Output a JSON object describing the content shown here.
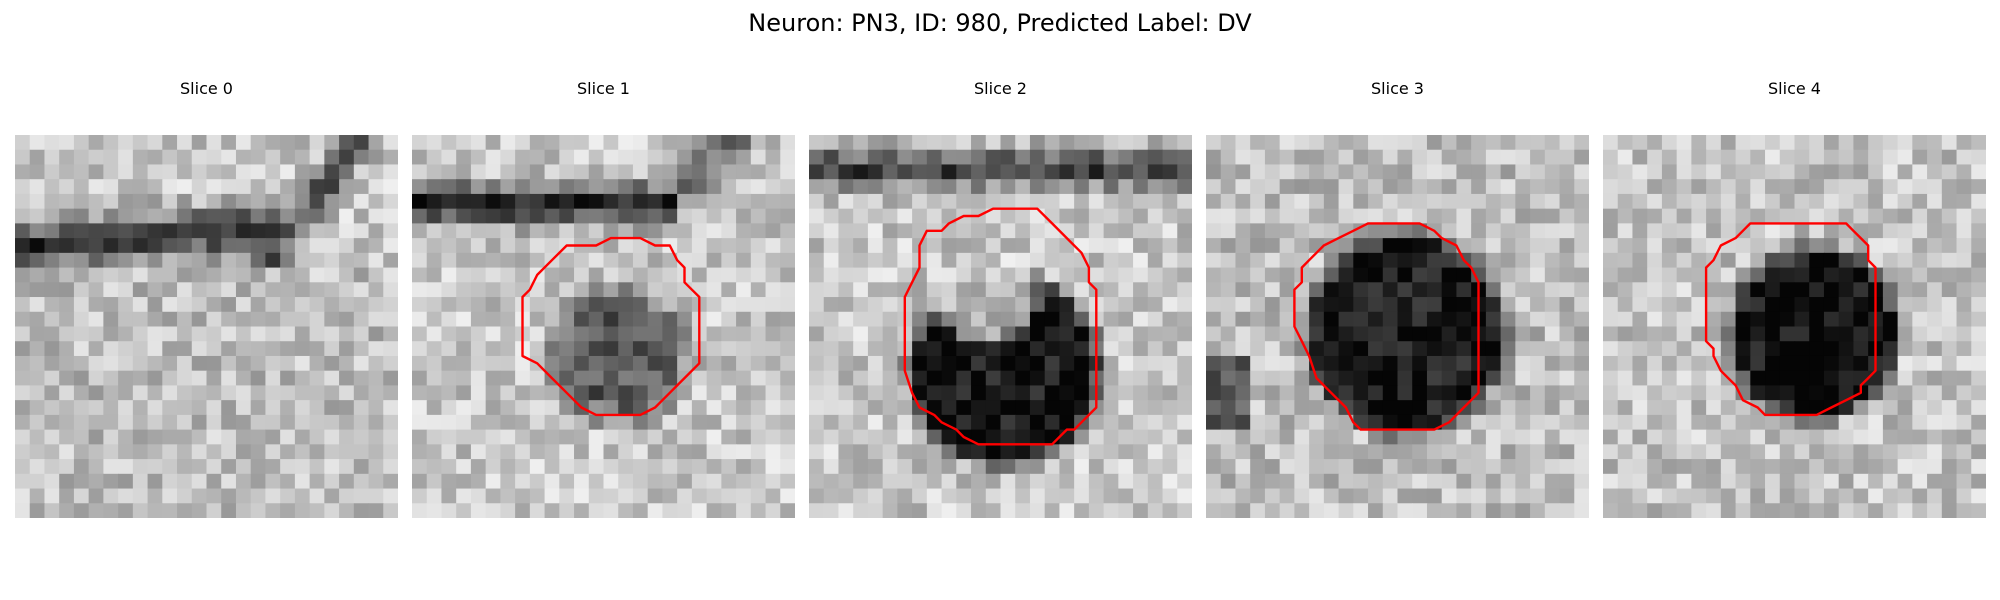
{
  "figure": {
    "title": "Neuron: PN3, ID: 980, Predicted Label: DV"
  },
  "colors": {
    "contour": "#ff0000",
    "background": "#ffffff"
  },
  "image_style": "grayscale microscopy patches",
  "panels": [
    {
      "title": "Slice 0",
      "has_contour": false
    },
    {
      "title": "Slice 1",
      "has_contour": true
    },
    {
      "title": "Slice 2",
      "has_contour": true
    },
    {
      "title": "Slice 3",
      "has_contour": true
    },
    {
      "title": "Slice 4",
      "has_contour": true
    }
  ]
}
